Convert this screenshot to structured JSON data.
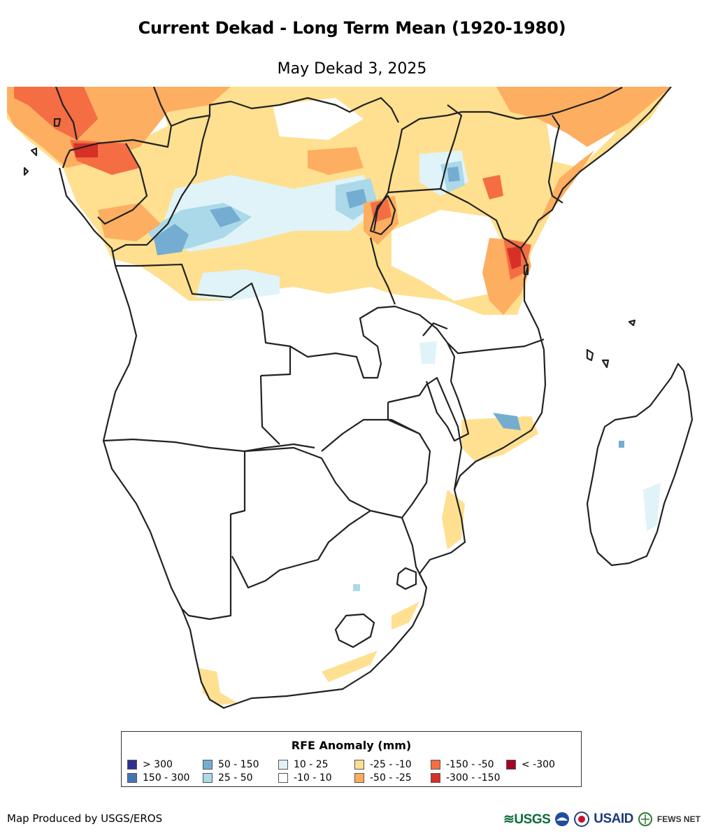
{
  "title": "Current Dekad - Long Term Mean (1920-1980)",
  "subtitle": "May Dekad 3, 2025",
  "legend": {
    "title": "RFE Anomaly (mm)",
    "items": [
      {
        "label": "> 300",
        "color": "#2e3192"
      },
      {
        "label": "150 - 300",
        "color": "#4475b4"
      },
      {
        "label": "50 - 150",
        "color": "#74add1"
      },
      {
        "label": "25 - 50",
        "color": "#abd9e9"
      },
      {
        "label": "10 - 25",
        "color": "#e0f3f8"
      },
      {
        "label": "-10 - 10",
        "color": "#ffffff"
      },
      {
        "label": "-25 - -10",
        "color": "#fee090"
      },
      {
        "label": "-50 - -25",
        "color": "#fdae61"
      },
      {
        "label": "-150 - -50",
        "color": "#f46d43"
      },
      {
        "label": "-300 - -150",
        "color": "#d73027"
      },
      {
        "label": "< -300",
        "color": "#a50026"
      }
    ]
  },
  "credit": "Map Produced by USGS/EROS",
  "logos": {
    "usgs": "USGS",
    "usaid": "USAID",
    "fews": "FEWS NET",
    "noaa_icon": "noaa-logo-icon",
    "seal_icon": "usaid-seal-icon",
    "globe_icon": "fews-globe-icon"
  }
}
